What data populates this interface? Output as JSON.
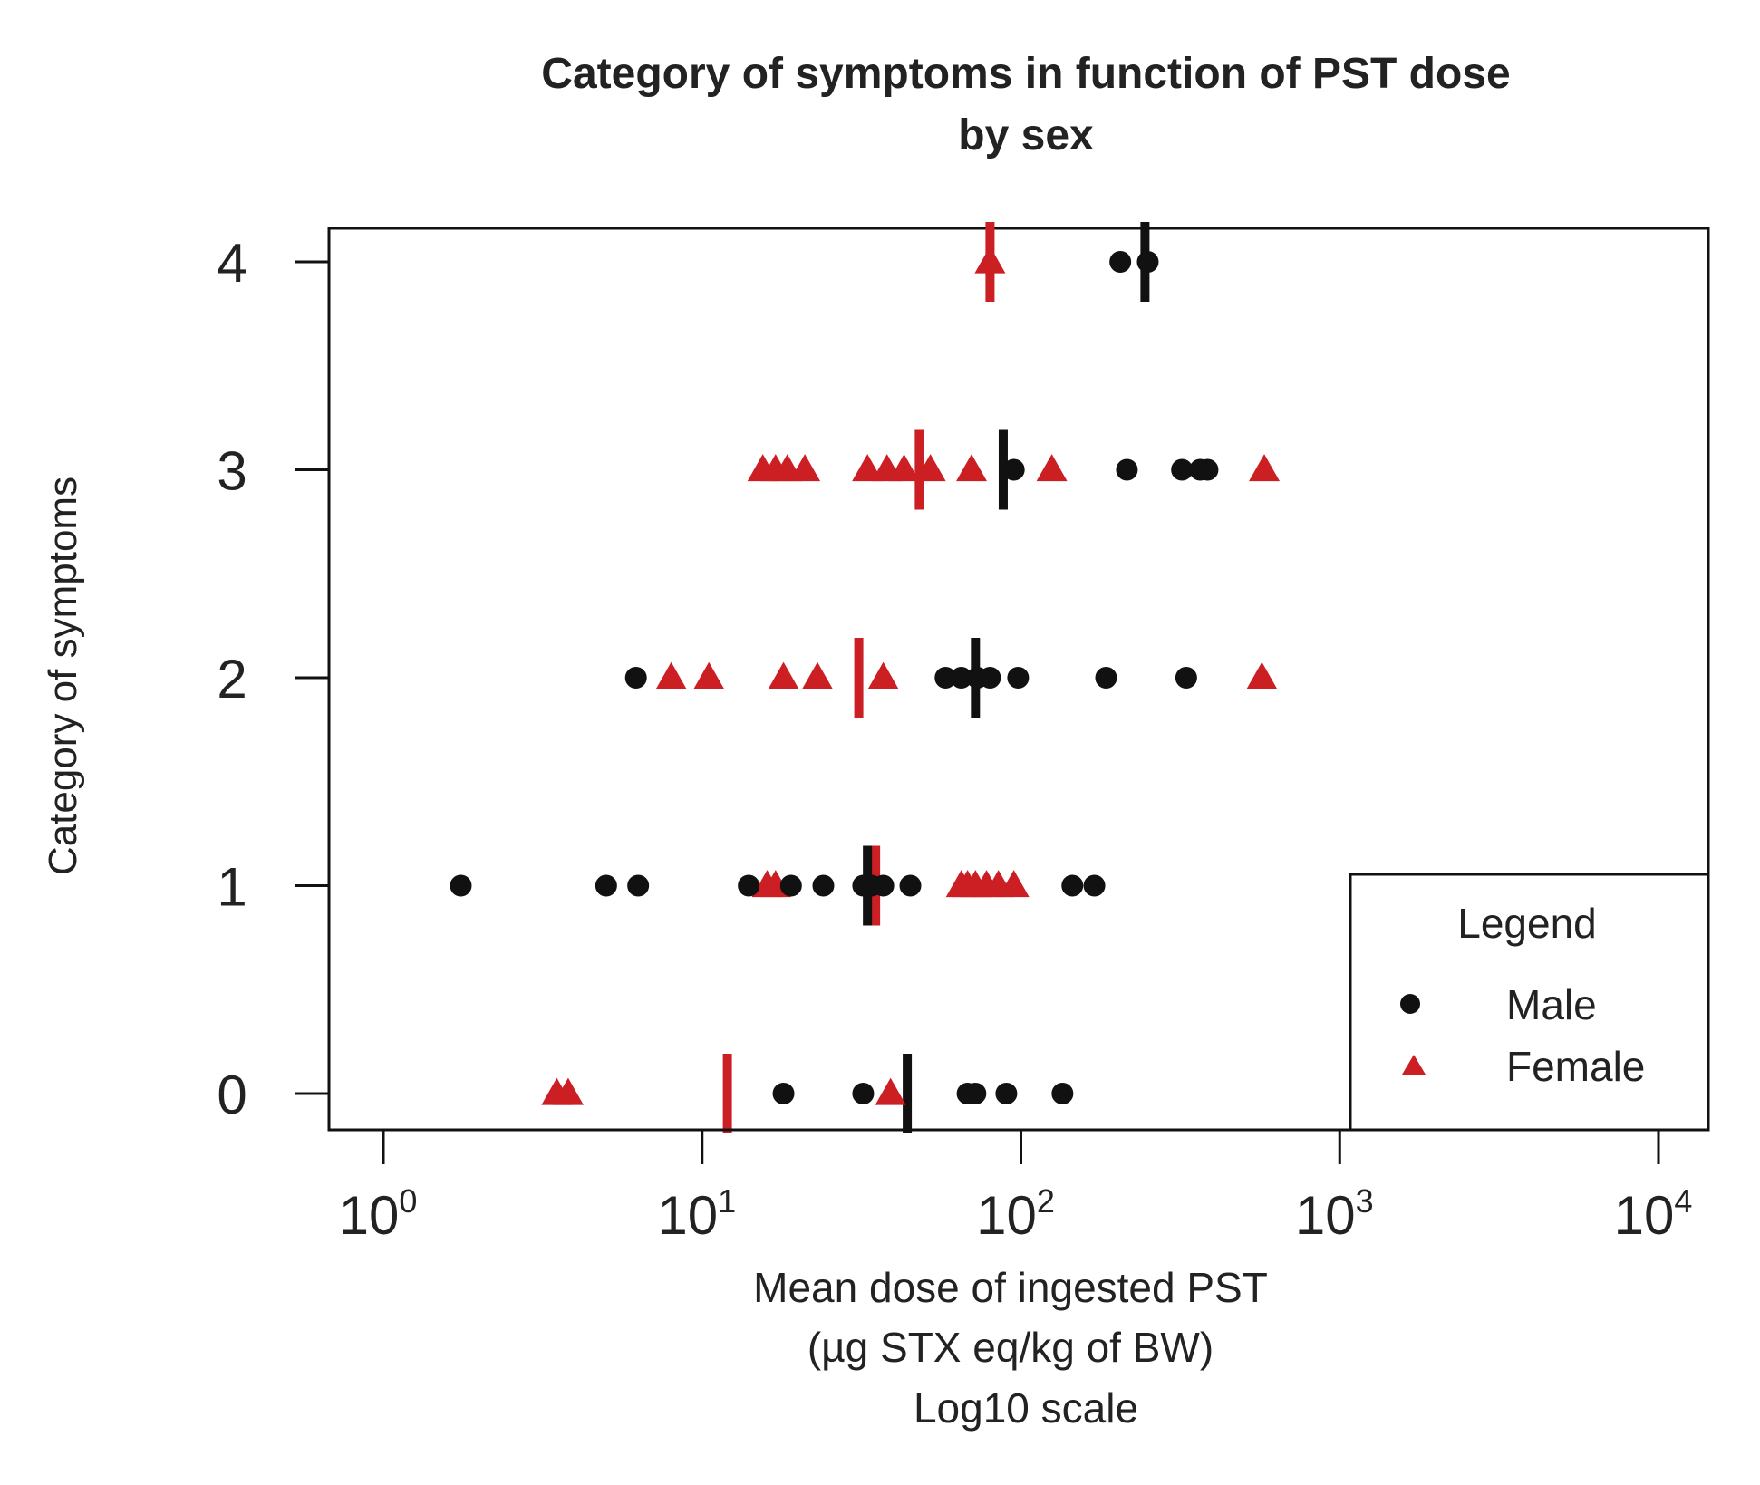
{
  "chart_data": {
    "type": "scatter",
    "title_lines": [
      "Category of symptoms in function of PST dose",
      "by sex"
    ],
    "xlabel_lines": [
      "Mean dose of ingested PST",
      "(µg STX eq/kg of BW)",
      "Log10 scale"
    ],
    "ylabel": "Category of symptoms",
    "x_scale": "log10",
    "xlim": [
      0.6,
      15000
    ],
    "ylim": [
      -0.17,
      4.17
    ],
    "x_ticks": [
      {
        "base": "10",
        "exp": "0",
        "value": 1
      },
      {
        "base": "10",
        "exp": "1",
        "value": 10
      },
      {
        "base": "10",
        "exp": "2",
        "value": 100
      },
      {
        "base": "10",
        "exp": "3",
        "value": 1000
      },
      {
        "base": "10",
        "exp": "4",
        "value": 10000
      }
    ],
    "y_ticks": [
      {
        "label": "0",
        "value": 0
      },
      {
        "label": "1",
        "value": 1
      },
      {
        "label": "2",
        "value": 2
      },
      {
        "label": "3",
        "value": 3
      },
      {
        "label": "4",
        "value": 4
      }
    ],
    "colors": {
      "male": "#111111",
      "female": "#cc1f24",
      "frame": "#111111"
    },
    "legend": {
      "title": "Legend",
      "position": "bottom-right",
      "entries": [
        {
          "label": "Male",
          "series": "male",
          "marker": "circle"
        },
        {
          "label": "Female",
          "series": "female",
          "marker": "triangle"
        }
      ]
    },
    "series": [
      {
        "name": "male",
        "marker": "circle",
        "color": "#111111",
        "points": [
          {
            "y": 0,
            "x": [
              18,
              32,
              68,
              72,
              90,
              135
            ]
          },
          {
            "y": 1,
            "x": [
              1.75,
              5,
              6.3,
              14,
              19,
              24,
              32,
              34,
              37,
              45,
              145,
              170
            ]
          },
          {
            "y": 2,
            "x": [
              6.2,
              58,
              65,
              73,
              80,
              98,
              185,
              330
            ]
          },
          {
            "y": 3,
            "x": [
              95,
              215,
              320,
              365,
              385
            ]
          },
          {
            "y": 4,
            "x": [
              205,
              250
            ]
          }
        ],
        "medians": [
          {
            "y": 0,
            "x": 44
          },
          {
            "y": 1,
            "x": 33
          },
          {
            "y": 2,
            "x": 72
          },
          {
            "y": 3,
            "x": 88
          },
          {
            "y": 4,
            "x": 245
          }
        ]
      },
      {
        "name": "female",
        "marker": "triangle",
        "color": "#cc1f24",
        "points": [
          {
            "y": 0,
            "x": [
              3.5,
              3.8,
              39
            ]
          },
          {
            "y": 1,
            "x": [
              16,
              17,
              65,
              68,
              72,
              78,
              85,
              95
            ]
          },
          {
            "y": 2,
            "x": [
              8,
              10.5,
              18,
              23,
              37,
              570
            ]
          },
          {
            "y": 3,
            "x": [
              15.5,
              17,
              18.5,
              21,
              33,
              38,
              43,
              52,
              70,
              125,
              580
            ]
          },
          {
            "y": 4,
            "x": [
              80
            ]
          }
        ],
        "medians": [
          {
            "y": 0,
            "x": 12
          },
          {
            "y": 1,
            "x": 35
          },
          {
            "y": 2,
            "x": 31
          },
          {
            "y": 3,
            "x": 48
          },
          {
            "y": 4,
            "x": 80
          }
        ]
      }
    ]
  }
}
